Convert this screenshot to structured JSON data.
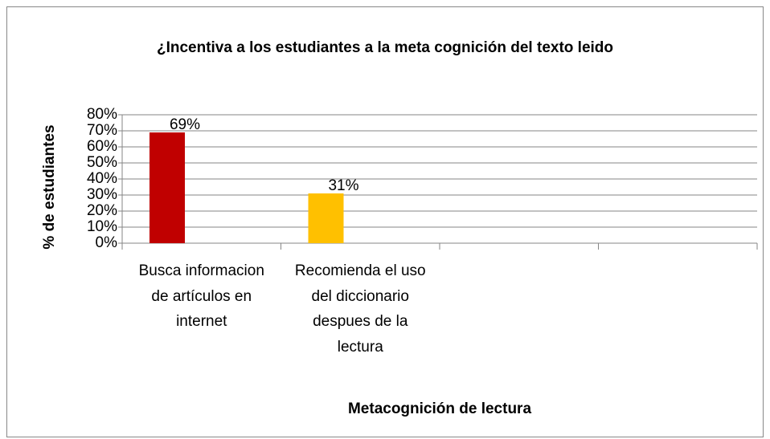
{
  "chart_data": {
    "type": "bar",
    "title": "¿Incentiva a los estudiantes a la meta cognición del texto leido",
    "y_label": "% de estudiantes",
    "x_label": "Metacognición de lectura",
    "categories": [
      "Busca informacion de artículos en internet",
      "Recomienda el uso del diccionario despues de la lectura",
      null,
      null
    ],
    "values": [
      69,
      31,
      null,
      null
    ],
    "value_labels": [
      "69%",
      "31%",
      null,
      null
    ],
    "colors": [
      "#c00000",
      "#ffc000",
      null,
      null
    ],
    "ylim": [
      0,
      80
    ],
    "yticks": [
      {
        "value": 0,
        "label": "0%"
      },
      {
        "value": 10,
        "label": "10%"
      },
      {
        "value": 20,
        "label": "20%"
      },
      {
        "value": 30,
        "label": "30%"
      },
      {
        "value": 40,
        "label": "40%"
      },
      {
        "value": 50,
        "label": "50%"
      },
      {
        "value": 60,
        "label": "60%"
      },
      {
        "value": 70,
        "label": "70%"
      },
      {
        "value": 80,
        "label": "80%"
      }
    ],
    "grid": true
  }
}
